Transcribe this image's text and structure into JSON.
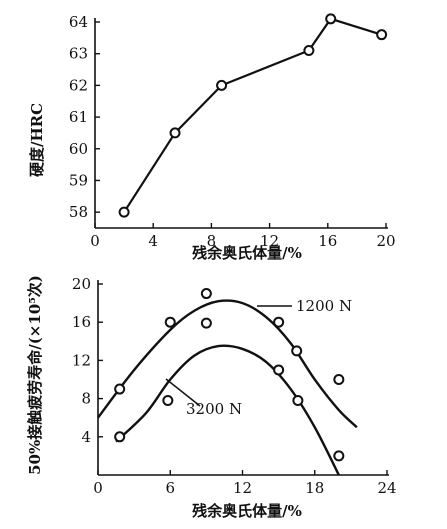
{
  "chart_data": [
    {
      "type": "line",
      "xlabel": "残余奥氏体量/%",
      "ylabel": "硬度/HRC",
      "xlim": [
        0,
        20
      ],
      "ylim": [
        57.5,
        64
      ],
      "xticks": [
        0,
        4,
        8,
        12,
        16,
        20
      ],
      "yticks": [
        58,
        59,
        60,
        61,
        62,
        63,
        64
      ],
      "grid": false,
      "series": [
        {
          "x": [
            2,
            5.5,
            8.7,
            14.7,
            16.2,
            19.7
          ],
          "y": [
            58,
            60.5,
            62,
            63.1,
            64.1,
            63.6
          ]
        }
      ],
      "colors": {
        "line": "#111111",
        "marker_fill": "#ffffff"
      }
    },
    {
      "type": "scatter",
      "xlabel": "残余奥氏体量/%",
      "ylabel": "50%接触疲劳寿命/(×10⁵次)",
      "xlim": [
        0,
        24
      ],
      "ylim": [
        0,
        20
      ],
      "xticks": [
        0,
        6,
        12,
        18,
        24
      ],
      "yticks": [
        4,
        8,
        12,
        16,
        20
      ],
      "grid": false,
      "series": [
        {
          "name": "1200 N",
          "points": [
            [
              1.8,
              9
            ],
            [
              6,
              16
            ],
            [
              9,
              19
            ],
            [
              9,
              15.9
            ],
            [
              15,
              16
            ],
            [
              16.5,
              13
            ],
            [
              20,
              10
            ]
          ],
          "fit_x": [
            0,
            3,
            6,
            8,
            10,
            12,
            14,
            16,
            18,
            20,
            21.5
          ],
          "fit_y": [
            6,
            11,
            15.2,
            17.2,
            18.2,
            18,
            16.5,
            13.8,
            10,
            6.8,
            5
          ]
        },
        {
          "name": "3200 N",
          "points": [
            [
              1.8,
              4
            ],
            [
              5.8,
              7.8
            ],
            [
              15,
              11
            ],
            [
              16.6,
              7.8
            ],
            [
              20,
              2
            ]
          ],
          "fit_x": [
            1.5,
            4,
            6,
            8,
            10,
            12,
            14,
            16,
            18,
            20
          ],
          "fit_y": [
            3.5,
            6.5,
            10,
            12.5,
            13.5,
            13.2,
            11.8,
            9,
            5,
            0
          ]
        }
      ],
      "colors": {
        "line": "#111111",
        "marker_fill": "#ffffff"
      }
    }
  ]
}
